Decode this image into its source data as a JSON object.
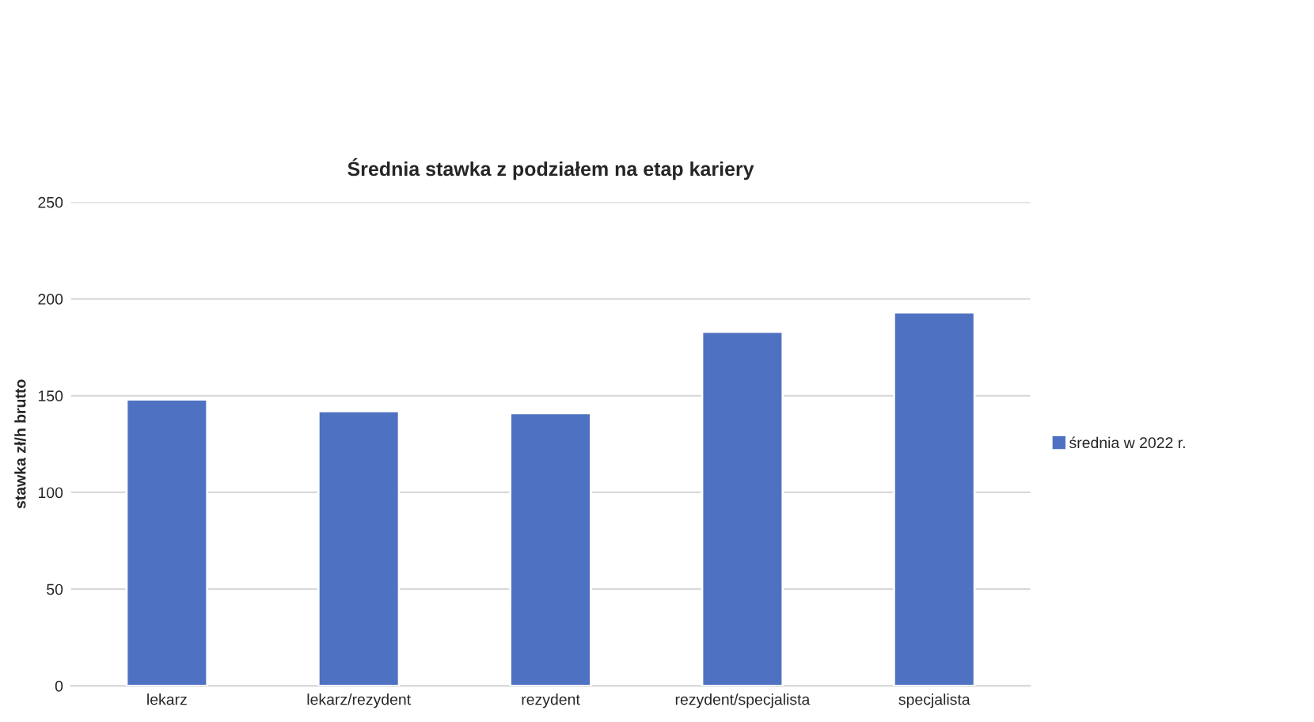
{
  "chart_data": {
    "type": "bar",
    "title": "Średnia stawka z podziałem na etap kariery",
    "ylabel": "stawka zł/h brutto",
    "categories": [
      "lekarz",
      "lekarz/rezydent",
      "rezydent",
      "rezydent/specjalista",
      "specjalista"
    ],
    "series": [
      {
        "name": "średnia w 2022 r.",
        "color": "#4f71c1",
        "values": [
          148,
          142,
          141,
          183,
          193
        ]
      }
    ],
    "ylim": [
      0,
      250
    ],
    "yticks": [
      0,
      50,
      100,
      150,
      200,
      250
    ],
    "grid": "y",
    "legend": "right"
  }
}
